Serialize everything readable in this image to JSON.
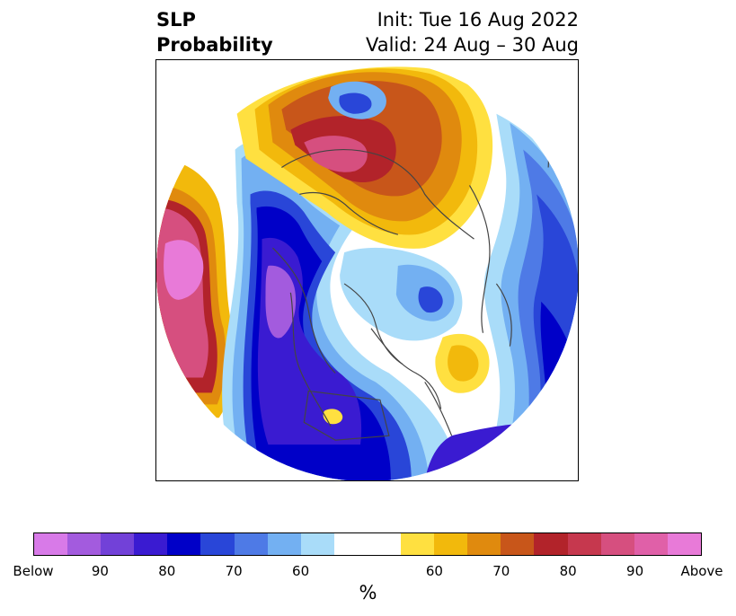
{
  "title": {
    "left_line1": "SLP",
    "left_line2": "Probability",
    "right_line1": "Init: Tue 16 Aug 2022",
    "right_line2": "Valid: 24 Aug – 30 Aug"
  },
  "colorbar": {
    "colors": [
      "#d87ae8",
      "#a35bde",
      "#7241d8",
      "#3a1bd1",
      "#0000c8",
      "#2946d8",
      "#4e7ae6",
      "#73b0f2",
      "#a9dcf9",
      "#ffffff",
      "#ffffff",
      "#ffe040",
      "#f2b90c",
      "#e08a0e",
      "#c8561a",
      "#b2232a",
      "#c6384e",
      "#d64f7f",
      "#e060a8",
      "#e87ad8"
    ],
    "labels": [
      "Below",
      "90",
      "80",
      "70",
      "60",
      "60",
      "70",
      "80",
      "90",
      "Above"
    ],
    "unit": "%"
  },
  "map": {
    "legend_colors": {
      "below_90": "#a35bde",
      "below_80": "#3a1bd1",
      "below_70": "#2946d8",
      "below_60": "#73b0f2",
      "below_50": "#a9dcf9",
      "above_50": "#ffe040",
      "above_60": "#f2b90c",
      "above_70": "#e08a0e",
      "above_80": "#c8561a",
      "above_90": "#b2232a",
      "above_max": "#e87ad8"
    }
  }
}
